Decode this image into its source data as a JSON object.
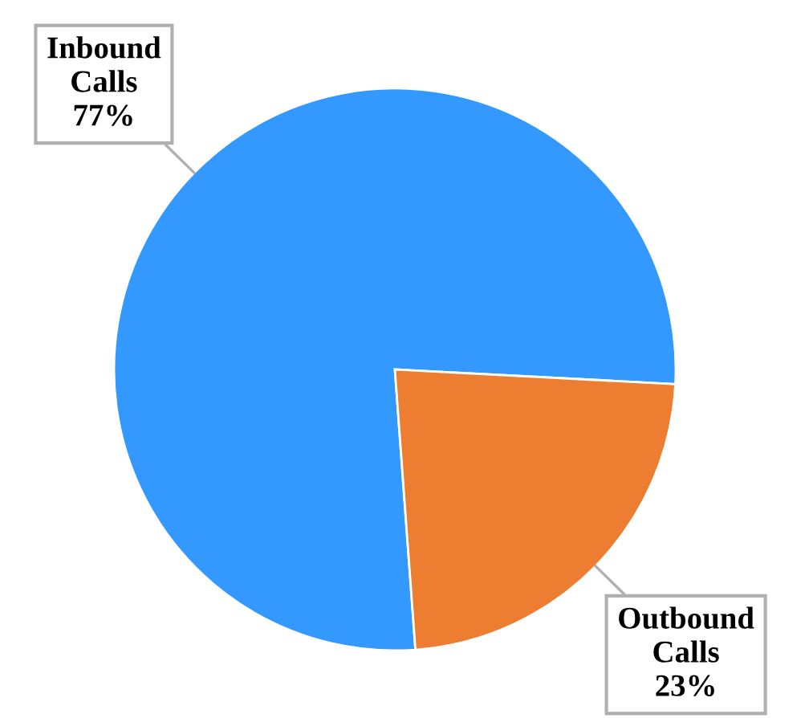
{
  "chart_data": {
    "type": "pie",
    "categories": [
      "Inbound Calls",
      "Outbound Calls"
    ],
    "values": [
      77,
      23
    ],
    "colors": [
      "#3399ff",
      "#ed7d31"
    ],
    "value_labels": [
      "77%",
      "23%"
    ],
    "legend": false
  }
}
